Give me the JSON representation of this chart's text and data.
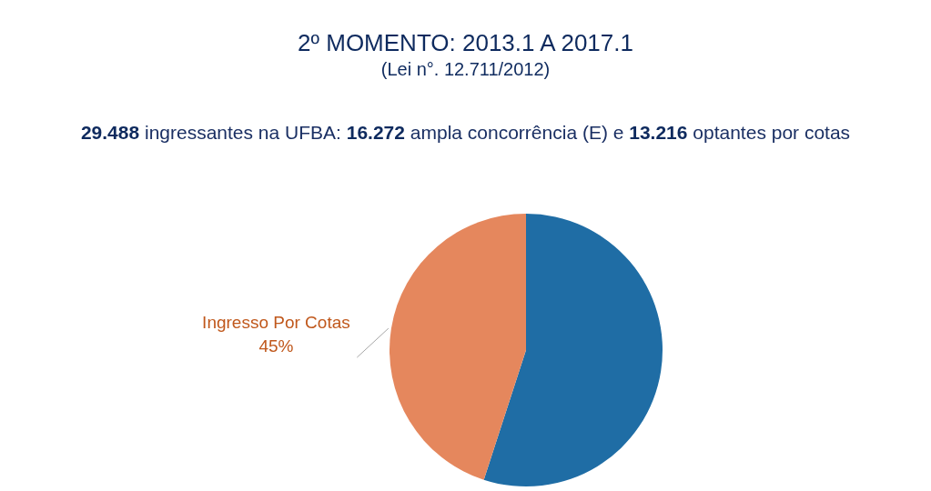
{
  "chart_data": {
    "type": "pie",
    "title": "2º MOMENTO: 2013.1 A 2017.1",
    "subtitle": "(Lei n°. 12.711/2012)",
    "annotations": [
      "29.488 ingressantes na UFBA: 16.272 ampla concorrência (E) e 13.216 optantes por cotas"
    ],
    "categories": [
      null,
      "Ingresso Por Cotas"
    ],
    "values": [
      55,
      45
    ],
    "colors": [
      "#1f6da5",
      "#e5875d"
    ],
    "value_labels": [
      null,
      "45%"
    ]
  }
}
